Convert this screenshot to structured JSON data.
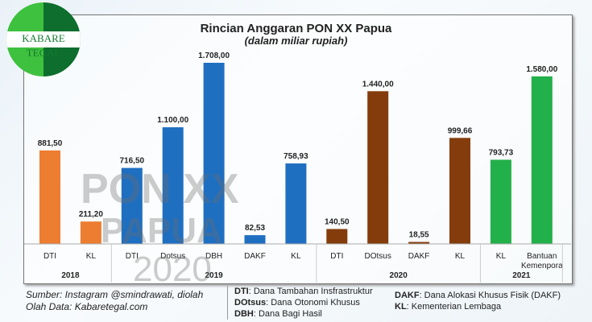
{
  "logo": {
    "text": "KABARE TEGAL"
  },
  "watermark": {
    "line1": "PON XX",
    "line2": "PAPUA",
    "line3": "2020"
  },
  "chart_data": {
    "type": "bar",
    "title": "Rincian Anggaran PON XX Papua",
    "subtitle": "(dalam miliar rupiah)",
    "categories": [
      "DTI",
      "KL",
      "DTI",
      "Dotsus",
      "DBH",
      "DAKF",
      "KL",
      "DTI",
      "DOtsus",
      "DAKF",
      "KL",
      "KL",
      "Bantuan Kemenpora"
    ],
    "groups": [
      {
        "year": "2018",
        "count": 2
      },
      {
        "year": "2019",
        "count": 5
      },
      {
        "year": "2020",
        "count": 4
      },
      {
        "year": "2021",
        "count": 2
      }
    ],
    "values": [
      881.5,
      211.2,
      716.5,
      1100,
      1708,
      82.53,
      758.93,
      140.5,
      1440,
      18.55,
      999.66,
      793.73,
      1580
    ],
    "labels": [
      "881,50",
      "211,20",
      "716,50",
      "1.100,00",
      "1.708,00",
      "82,53",
      "758,93",
      "140,50",
      "1.440,00",
      "18,55",
      "999,66",
      "793,73",
      "1.580,00"
    ],
    "colors": {
      "2018": "#ed7d31",
      "2019": "#1f6fc1",
      "2020": "#843c0c",
      "2021": "#22b04a"
    },
    "ylim": [
      0,
      1708
    ],
    "grid": false
  },
  "footer": {
    "source": "Sumber: Instagram @smindrawati, diolah",
    "data": "Olah Data: Kabaretegal.com",
    "legend": [
      {
        "abbr": "DTI",
        "desc": ": Dana Tambahan Insfrastruktur"
      },
      {
        "abbr": "DOtsus",
        "desc": ": Dana Otonomi Khusus"
      },
      {
        "abbr": "DBH",
        "desc": ": Dana Bagi Hasil"
      },
      {
        "abbr": "DAKF",
        "desc": ": Dana Alokasi Khusus Fisik (DAKF)"
      },
      {
        "abbr": "KL",
        "desc": ": Kementerian Lembaga"
      }
    ]
  }
}
